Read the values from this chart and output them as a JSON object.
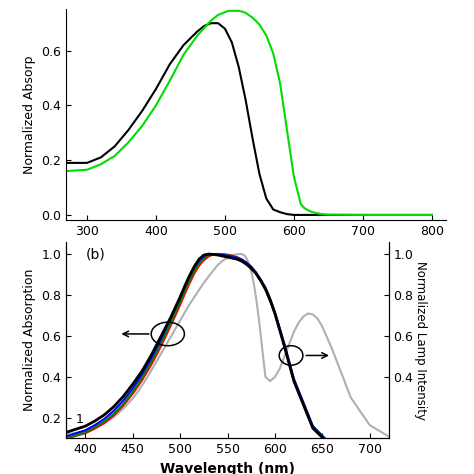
{
  "top_panel": {
    "ylabel": "Normalized Absorp",
    "xlabel": "Wavelength (nm)",
    "xlim": [
      270,
      820
    ],
    "ylim": [
      -0.02,
      0.75
    ],
    "yticks": [
      0.0,
      0.2,
      0.4,
      0.6
    ],
    "xticks": [
      300,
      400,
      500,
      600,
      700,
      800
    ],
    "black_curve": {
      "x": [
        270,
        300,
        320,
        340,
        360,
        380,
        400,
        420,
        440,
        460,
        470,
        480,
        490,
        500,
        510,
        520,
        530,
        540,
        550,
        560,
        570,
        580,
        590,
        600,
        650,
        700,
        800
      ],
      "y": [
        0.19,
        0.19,
        0.21,
        0.25,
        0.31,
        0.38,
        0.46,
        0.55,
        0.62,
        0.67,
        0.69,
        0.7,
        0.7,
        0.68,
        0.63,
        0.54,
        0.42,
        0.28,
        0.15,
        0.06,
        0.02,
        0.01,
        0.003,
        0.0,
        0.0,
        0.0,
        0.0
      ]
    },
    "green_curve": {
      "x": [
        270,
        300,
        320,
        340,
        360,
        380,
        400,
        420,
        440,
        460,
        480,
        490,
        500,
        505,
        510,
        515,
        520,
        525,
        530,
        540,
        550,
        560,
        570,
        580,
        590,
        600,
        610,
        615,
        620,
        625,
        630,
        640,
        650,
        700,
        800
      ],
      "y": [
        0.16,
        0.165,
        0.185,
        0.215,
        0.265,
        0.325,
        0.4,
        0.49,
        0.585,
        0.655,
        0.71,
        0.73,
        0.74,
        0.745,
        0.745,
        0.745,
        0.745,
        0.742,
        0.738,
        0.72,
        0.695,
        0.655,
        0.59,
        0.48,
        0.31,
        0.14,
        0.04,
        0.025,
        0.018,
        0.012,
        0.008,
        0.003,
        0.001,
        0.0,
        0.0
      ]
    }
  },
  "bottom_panel": {
    "ylabel_left": "Normalized Absorption",
    "ylabel_right": "Normalized Lamp Intensity",
    "xlim": [
      380,
      720
    ],
    "ylim": [
      0.1,
      1.06
    ],
    "yticks_left": [
      0.2,
      0.4,
      0.6,
      0.8,
      1.0
    ],
    "yticks_right": [
      0.4,
      0.6,
      0.8,
      1.0
    ],
    "label_b": "(b)",
    "black_curve": {
      "x": [
        380,
        400,
        410,
        420,
        430,
        440,
        450,
        460,
        465,
        470,
        475,
        480,
        485,
        490,
        495,
        500,
        505,
        510,
        515,
        520,
        525,
        530,
        535,
        540,
        545,
        550,
        555,
        560,
        565,
        570,
        575,
        580,
        585,
        590,
        595,
        600,
        610,
        620,
        640,
        660,
        680,
        700,
        720
      ],
      "y": [
        0.13,
        0.16,
        0.185,
        0.215,
        0.255,
        0.305,
        0.365,
        0.43,
        0.47,
        0.51,
        0.555,
        0.6,
        0.645,
        0.69,
        0.74,
        0.79,
        0.845,
        0.895,
        0.94,
        0.975,
        0.995,
        1.0,
        0.998,
        0.995,
        0.99,
        0.985,
        0.98,
        0.975,
        0.965,
        0.95,
        0.93,
        0.905,
        0.87,
        0.83,
        0.775,
        0.71,
        0.55,
        0.38,
        0.15,
        0.06,
        0.03,
        0.02,
        0.015
      ]
    },
    "blue_curve": {
      "x": [
        380,
        400,
        410,
        420,
        430,
        440,
        450,
        460,
        465,
        470,
        475,
        480,
        485,
        490,
        495,
        500,
        505,
        510,
        515,
        520,
        525,
        530,
        535,
        540,
        545,
        550,
        555,
        560,
        565,
        570,
        575,
        580,
        585,
        590,
        595,
        600,
        610,
        620,
        640,
        660,
        680,
        700,
        720
      ],
      "y": [
        0.11,
        0.14,
        0.165,
        0.195,
        0.235,
        0.285,
        0.345,
        0.415,
        0.455,
        0.495,
        0.54,
        0.585,
        0.635,
        0.685,
        0.735,
        0.785,
        0.84,
        0.89,
        0.935,
        0.968,
        0.99,
        1.0,
        1.0,
        0.998,
        0.995,
        0.992,
        0.988,
        0.982,
        0.972,
        0.958,
        0.938,
        0.91,
        0.875,
        0.835,
        0.78,
        0.715,
        0.56,
        0.39,
        0.16,
        0.065,
        0.03,
        0.02,
        0.015
      ]
    },
    "green_curve": {
      "x": [
        380,
        400,
        410,
        420,
        430,
        440,
        450,
        460,
        465,
        470,
        475,
        480,
        485,
        490,
        495,
        500,
        505,
        510,
        515,
        520,
        525,
        530,
        535,
        540,
        545,
        550,
        555,
        560,
        565,
        570,
        575,
        580,
        585,
        590,
        595,
        600,
        610,
        620,
        640,
        660,
        680,
        700,
        720
      ],
      "y": [
        0.1,
        0.13,
        0.155,
        0.182,
        0.22,
        0.268,
        0.328,
        0.398,
        0.438,
        0.478,
        0.522,
        0.567,
        0.615,
        0.665,
        0.715,
        0.768,
        0.822,
        0.872,
        0.918,
        0.955,
        0.98,
        0.995,
        1.0,
        1.0,
        0.998,
        0.994,
        0.989,
        0.982,
        0.972,
        0.958,
        0.938,
        0.91,
        0.875,
        0.835,
        0.78,
        0.715,
        0.56,
        0.39,
        0.16,
        0.065,
        0.03,
        0.02,
        0.015
      ]
    },
    "red_curve": {
      "x": [
        380,
        400,
        410,
        420,
        430,
        440,
        450,
        460,
        465,
        470,
        475,
        480,
        485,
        490,
        495,
        500,
        505,
        510,
        515,
        520,
        525,
        530,
        535,
        540,
        545,
        550,
        555,
        560,
        565,
        570,
        575,
        580,
        585,
        590,
        595,
        600,
        610,
        620,
        640,
        660,
        680,
        700,
        720
      ],
      "y": [
        0.1,
        0.125,
        0.148,
        0.175,
        0.212,
        0.26,
        0.318,
        0.385,
        0.424,
        0.463,
        0.507,
        0.552,
        0.6,
        0.65,
        0.7,
        0.752,
        0.806,
        0.858,
        0.905,
        0.943,
        0.97,
        0.988,
        0.998,
        1.0,
        1.0,
        0.997,
        0.992,
        0.985,
        0.974,
        0.958,
        0.936,
        0.905,
        0.868,
        0.825,
        0.77,
        0.706,
        0.55,
        0.38,
        0.155,
        0.062,
        0.03,
        0.02,
        0.015
      ]
    },
    "gray_curve": {
      "x": [
        380,
        400,
        420,
        430,
        440,
        450,
        455,
        460,
        465,
        470,
        475,
        480,
        485,
        490,
        495,
        500,
        505,
        510,
        515,
        520,
        525,
        530,
        535,
        540,
        545,
        550,
        555,
        560,
        562,
        564,
        566,
        568,
        570,
        572,
        574,
        576,
        578,
        580,
        582,
        584,
        586,
        588,
        590,
        595,
        600,
        605,
        610,
        615,
        620,
        625,
        630,
        635,
        640,
        645,
        650,
        660,
        670,
        680,
        700,
        720
      ],
      "y": [
        0.12,
        0.135,
        0.175,
        0.205,
        0.245,
        0.295,
        0.325,
        0.36,
        0.395,
        0.435,
        0.475,
        0.515,
        0.555,
        0.595,
        0.635,
        0.675,
        0.715,
        0.755,
        0.79,
        0.825,
        0.86,
        0.89,
        0.92,
        0.948,
        0.968,
        0.982,
        0.993,
        0.999,
        1.0,
        1.0,
        0.998,
        0.992,
        0.98,
        0.96,
        0.932,
        0.895,
        0.848,
        0.79,
        0.722,
        0.646,
        0.564,
        0.48,
        0.4,
        0.38,
        0.4,
        0.44,
        0.5,
        0.56,
        0.62,
        0.665,
        0.695,
        0.71,
        0.705,
        0.685,
        0.645,
        0.54,
        0.42,
        0.3,
        0.165,
        0.11
      ]
    }
  },
  "background_color": "#ffffff",
  "line_width": 1.5
}
